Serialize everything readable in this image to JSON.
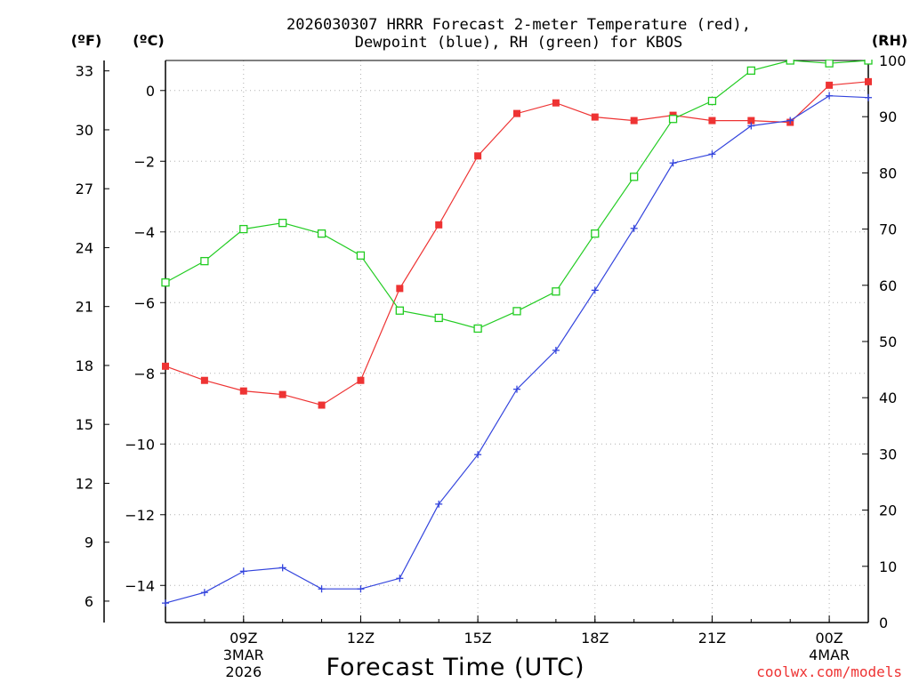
{
  "chart_data": {
    "type": "line",
    "title_line1": "2026030307 HRRR Forecast 2-meter Temperature (red),",
    "title_line2": "Dewpoint (blue), RH (green) for KBOS",
    "xlabel": "Forecast Time (UTC)",
    "credit": "coolwx.com/models",
    "units": {
      "f": "(ºF)",
      "c": "(ºC)",
      "rh": "(RH)"
    },
    "x_hours": [
      7,
      8,
      9,
      10,
      11,
      12,
      13,
      14,
      15,
      16,
      17,
      18,
      19,
      20,
      21,
      22,
      23,
      24,
      25
    ],
    "xlim": [
      7,
      25
    ],
    "x_ticks": [
      {
        "h": 9,
        "label": "09Z",
        "sub1": "3MAR",
        "sub2": "2026"
      },
      {
        "h": 12,
        "label": "12Z",
        "sub1": "",
        "sub2": ""
      },
      {
        "h": 15,
        "label": "15Z",
        "sub1": "",
        "sub2": ""
      },
      {
        "h": 18,
        "label": "18Z",
        "sub1": "",
        "sub2": ""
      },
      {
        "h": 21,
        "label": "21Z",
        "sub1": "",
        "sub2": ""
      },
      {
        "h": 24,
        "label": "00Z",
        "sub1": "4MAR",
        "sub2": ""
      }
    ],
    "c_ticks": [
      0,
      -2,
      -4,
      -6,
      -8,
      -10,
      -12,
      -14
    ],
    "c_tick_labels": [
      "0",
      "−2",
      "−4",
      "−6",
      "−8",
      "−10",
      "−12",
      "−14"
    ],
    "f_ticks": [
      33,
      30,
      27,
      24,
      21,
      18,
      15,
      12,
      9,
      6
    ],
    "f_tick_labels": [
      "33",
      "30",
      "27",
      "24",
      "21",
      "18",
      "15",
      "12",
      "9",
      "6"
    ],
    "rh_ticks": [
      100,
      90,
      80,
      70,
      60,
      50,
      40,
      30,
      20,
      10,
      0
    ],
    "rh_tick_labels": [
      "100",
      "90",
      "80",
      "70",
      "60",
      "50",
      "40",
      "30",
      "20",
      "10",
      "0"
    ],
    "ylim_c": [
      -15.05,
      0.85
    ],
    "ylim_rh": [
      0,
      100
    ],
    "series": [
      {
        "name": "Temperature",
        "axis": "c",
        "color": "#ee3333",
        "marker": "filled-square",
        "values": [
          -7.8,
          -8.2,
          -8.5,
          -8.6,
          -8.9,
          -8.2,
          -5.6,
          -3.8,
          -1.85,
          -0.65,
          -0.35,
          -0.75,
          -0.85,
          -0.7,
          -0.85,
          -0.85,
          -0.9,
          0.15,
          0.25
        ]
      },
      {
        "name": "Dewpoint",
        "axis": "c",
        "color": "#3344dd",
        "marker": "plus",
        "values": [
          -14.5,
          -14.2,
          -13.6,
          -13.5,
          -14.1,
          -14.1,
          -13.8,
          -11.7,
          -10.3,
          -8.45,
          -7.35,
          -5.65,
          -3.9,
          -2.05,
          -1.8,
          -1.0,
          -0.85,
          -0.15,
          -0.2
        ]
      },
      {
        "name": "RH",
        "axis": "rh",
        "color": "#22cc22",
        "marker": "open-square",
        "values": [
          60.5,
          64.3,
          70.0,
          71.1,
          69.2,
          65.3,
          55.5,
          54.2,
          52.3,
          55.4,
          58.9,
          69.2,
          79.3,
          89.6,
          92.8,
          98.2,
          100,
          99.5,
          100
        ]
      }
    ]
  }
}
